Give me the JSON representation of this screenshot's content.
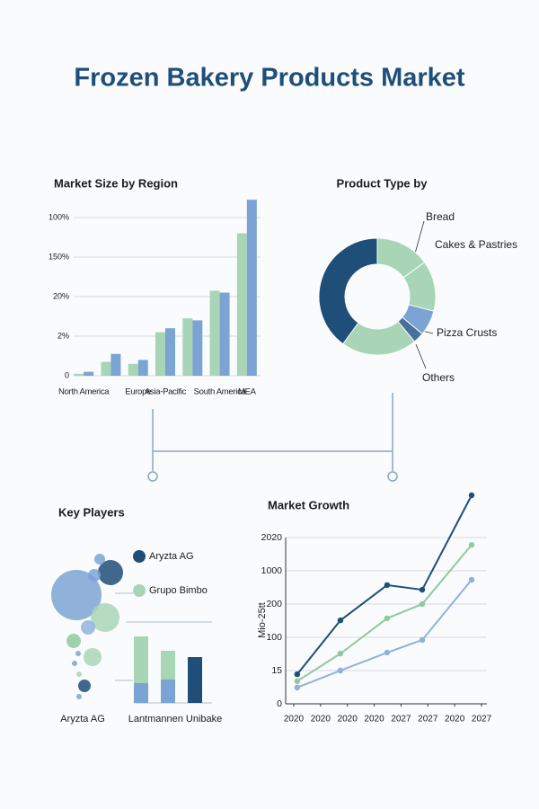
{
  "title": "Frozen Bakery Products Market",
  "chart_data": [
    {
      "type": "bar",
      "title": "Market Size by Region",
      "categories": [
        "North America",
        null,
        "Europe",
        "Asia-Pacific",
        null,
        "South America",
        "MEA"
      ],
      "series": [
        {
          "color": "#a8d5b5",
          "values": [
            0.05,
            0.35,
            0.3,
            1.1,
            1.45,
            2.15,
            3.6
          ]
        },
        {
          "color": "#7ba3d4",
          "values": [
            0.1,
            0.55,
            0.4,
            1.2,
            1.4,
            2.1,
            4.45
          ]
        }
      ],
      "ylim": [
        0,
        4.5
      ],
      "yticks": [
        {
          "value": 0,
          "label": "0"
        },
        {
          "value": 1,
          "label": "2%"
        },
        {
          "value": 2,
          "label": "20%"
        },
        {
          "value": 3,
          "label": "150%"
        },
        {
          "value": 4,
          "label": "100%"
        }
      ],
      "grid": true
    },
    {
      "type": "pie",
      "title": "Product Type by",
      "categories": [
        "Bread",
        "Cakes & Pastries",
        "Pizza Crusts",
        "Others",
        null,
        null
      ],
      "values": [
        15,
        14,
        7,
        3,
        21,
        40
      ],
      "colors": [
        "#a8d5b5",
        "#a8d5b5",
        "#7ba3d4",
        "#4a6f9a",
        "#a8d5b5",
        "#1f4e79"
      ]
    },
    {
      "type": "stacked_bar",
      "title": "Key Players",
      "categories": [
        null,
        null,
        null
      ],
      "series": [
        {
          "name": "Aryzta AG",
          "color": "#1f4e79",
          "values": [
            0,
            0,
            51
          ]
        },
        {
          "name": "Grupo Bimbo",
          "color": "#a8d5b5",
          "values": [
            52,
            32,
            0
          ]
        },
        {
          "color": "#7ba3d4",
          "values": [
            22,
            26,
            0
          ]
        }
      ],
      "ylim": [
        0,
        80
      ],
      "labels": [
        "Aryzta AG",
        "Lantmannen Unibake"
      ]
    },
    {
      "type": "line",
      "title": "Market Growth",
      "ylabel": "Mio-25tt",
      "xlim": [
        -0.3,
        7.2
      ],
      "ylim": [
        0,
        6.5
      ],
      "xticks": [
        {
          "value": 0,
          "label": "2020"
        },
        {
          "value": 1,
          "label": "2020"
        },
        {
          "value": 2,
          "label": "2020"
        },
        {
          "value": 3,
          "label": "2020"
        },
        {
          "value": 4,
          "label": "2027"
        },
        {
          "value": 5,
          "label": "2027"
        },
        {
          "value": 6,
          "label": "2020"
        },
        {
          "value": 7,
          "label": "2027"
        }
      ],
      "yticks": [
        {
          "value": 0,
          "label": "0"
        },
        {
          "value": 1,
          "label": "15"
        },
        {
          "value": 2,
          "label": "100"
        },
        {
          "value": 3,
          "label": "200"
        },
        {
          "value": 4,
          "label": "1000"
        },
        {
          "value": 5,
          "label": "2020"
        }
      ],
      "grid": true,
      "series": [
        {
          "color": "#1f4e79",
          "x": [
            0.13,
            1.74,
            3.48,
            4.79,
            6.63
          ],
          "values": [
            0.89,
            2.51,
            3.57,
            3.43,
            6.27
          ]
        },
        {
          "color": "#8fc9a0",
          "x": [
            0.13,
            1.74,
            3.48,
            4.79,
            6.63
          ],
          "values": [
            0.68,
            1.51,
            2.57,
            3.0,
            4.78
          ]
        },
        {
          "color": "#8fb1de",
          "x": [
            0.13,
            1.74,
            3.48,
            4.79,
            6.63
          ],
          "values": [
            0.49,
            1.0,
            1.54,
            1.92,
            3.73
          ]
        }
      ]
    }
  ]
}
